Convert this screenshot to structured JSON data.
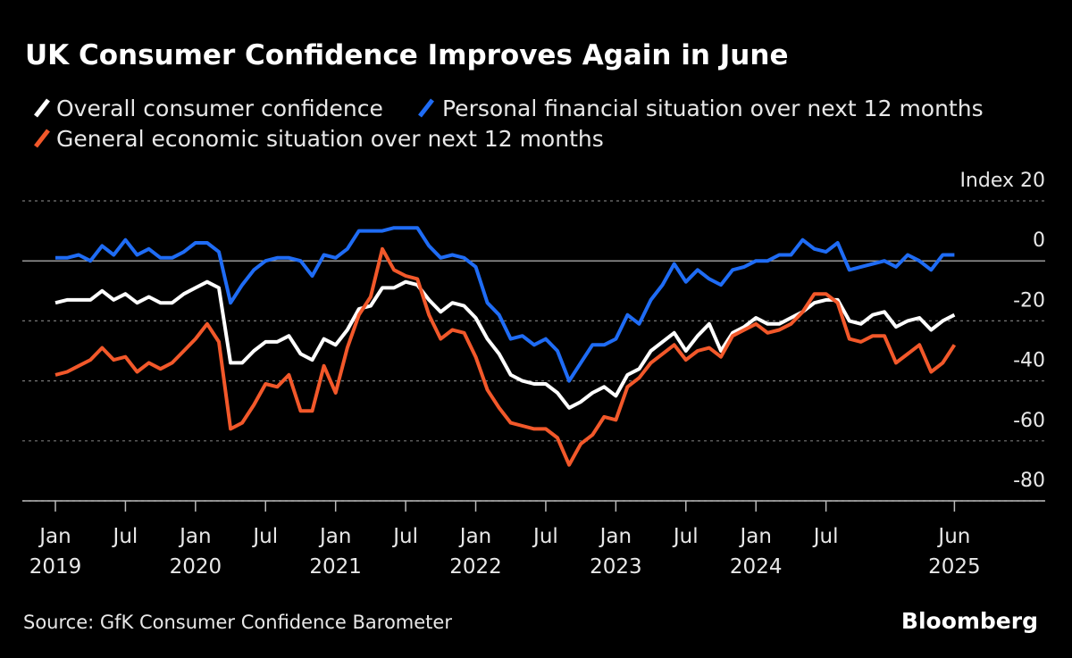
{
  "chart_data": {
    "type": "line",
    "title": "UK Consumer Confidence Improves Again in June",
    "source": "Source: GfK Consumer Confidence Barometer",
    "branding": "Bloomberg",
    "x": [
      "2019-01",
      "2019-02",
      "2019-03",
      "2019-04",
      "2019-05",
      "2019-06",
      "2019-07",
      "2019-08",
      "2019-09",
      "2019-10",
      "2019-11",
      "2019-12",
      "2020-01",
      "2020-02",
      "2020-03",
      "2020-04",
      "2020-05",
      "2020-06",
      "2020-07",
      "2020-08",
      "2020-09",
      "2020-10",
      "2020-11",
      "2020-12",
      "2021-01",
      "2021-02",
      "2021-03",
      "2021-04",
      "2021-05",
      "2021-06",
      "2021-07",
      "2021-08",
      "2021-09",
      "2021-10",
      "2021-11",
      "2021-12",
      "2022-01",
      "2022-02",
      "2022-03",
      "2022-04",
      "2022-05",
      "2022-06",
      "2022-07",
      "2022-08",
      "2022-09",
      "2022-10",
      "2022-11",
      "2022-12",
      "2023-01",
      "2023-02",
      "2023-03",
      "2023-04",
      "2023-05",
      "2023-06",
      "2023-07",
      "2023-08",
      "2023-09",
      "2023-10",
      "2023-11",
      "2023-12",
      "2024-01",
      "2024-02",
      "2024-03",
      "2024-04",
      "2024-05",
      "2024-06",
      "2024-07",
      "2024-08",
      "2024-09",
      "2024-10",
      "2024-11",
      "2024-12",
      "2025-01",
      "2025-02",
      "2025-03",
      "2025-04",
      "2025-05",
      "2025-06"
    ],
    "series": [
      {
        "name": "Overall consumer confidence",
        "color": "#ffffff",
        "values": [
          -14,
          -13,
          -13,
          -13,
          -10,
          -13,
          -11,
          -14,
          -12,
          -14,
          -14,
          -11,
          -9,
          -7,
          -9,
          -34,
          -34,
          -30,
          -27,
          -27,
          -25,
          -31,
          -33,
          -26,
          -28,
          -23,
          -16,
          -15,
          -9,
          -9,
          -7,
          -8,
          -13,
          -17,
          -14,
          -15,
          -19,
          -26,
          -31,
          -38,
          -40,
          -41,
          -41,
          -44,
          -49,
          -47,
          -44,
          -42,
          -45,
          -38,
          -36,
          -30,
          -27,
          -24,
          -30,
          -25,
          -21,
          -30,
          -24,
          -22,
          -19,
          -21,
          -21,
          -19,
          -17,
          -14,
          -13,
          -13,
          -20,
          -21,
          -18,
          -17,
          -22,
          -20,
          -19,
          -23,
          -20,
          -18
        ]
      },
      {
        "name": "Personal financial situation over next 12 months",
        "color": "#1f6cf5",
        "values": [
          1,
          1,
          2,
          0,
          5,
          2,
          7,
          2,
          4,
          1,
          1,
          3,
          6,
          6,
          3,
          -14,
          -8,
          -3,
          0,
          1,
          1,
          0,
          -5,
          2,
          1,
          4,
          10,
          10,
          10,
          11,
          11,
          11,
          5,
          1,
          2,
          1,
          -2,
          -14,
          -18,
          -26,
          -25,
          -28,
          -26,
          -30,
          -40,
          -34,
          -28,
          -28,
          -26,
          -18,
          -21,
          -13,
          -8,
          -1,
          -7,
          -3,
          -6,
          -8,
          -3,
          -2,
          0,
          0,
          2,
          2,
          7,
          4,
          3,
          6,
          -3,
          -2,
          -1,
          0,
          -2,
          2,
          0,
          -3,
          2,
          2
        ]
      },
      {
        "name": "General economic situation over next 12 months",
        "color": "#f2582a",
        "values": [
          -38,
          -37,
          -35,
          -33,
          -29,
          -33,
          -32,
          -37,
          -34,
          -36,
          -34,
          -30,
          -26,
          -21,
          -27,
          -56,
          -54,
          -48,
          -41,
          -42,
          -38,
          -50,
          -50,
          -35,
          -44,
          -29,
          -18,
          -12,
          4,
          -3,
          -5,
          -6,
          -18,
          -26,
          -23,
          -24,
          -32,
          -43,
          -49,
          -54,
          -55,
          -56,
          -56,
          -59,
          -68,
          -61,
          -58,
          -52,
          -53,
          -42,
          -39,
          -34,
          -31,
          -28,
          -33,
          -30,
          -29,
          -32,
          -25,
          -23,
          -21,
          -24,
          -23,
          -21,
          -17,
          -11,
          -11,
          -14,
          -26,
          -27,
          -25,
          -25,
          -34,
          -31,
          -28,
          -37,
          -34,
          -28
        ]
      }
    ],
    "ylim": [
      -80,
      20
    ],
    "yticks": [
      -80,
      -60,
      -40,
      -20,
      0,
      {
        "value": 20,
        "label": "Index 20"
      }
    ],
    "xticks": [
      {
        "value": "2019-01",
        "label": "Jan",
        "year": "2019"
      },
      {
        "value": "2019-07",
        "label": "Jul"
      },
      {
        "value": "2020-01",
        "label": "Jan",
        "year": "2020"
      },
      {
        "value": "2020-07",
        "label": "Jul"
      },
      {
        "value": "2021-01",
        "label": "Jan",
        "year": "2021"
      },
      {
        "value": "2021-07",
        "label": "Jul"
      },
      {
        "value": "2022-01",
        "label": "Jan",
        "year": "2022"
      },
      {
        "value": "2022-07",
        "label": "Jul"
      },
      {
        "value": "2023-01",
        "label": "Jan",
        "year": "2023"
      },
      {
        "value": "2023-07",
        "label": "Jul"
      },
      {
        "value": "2024-01",
        "label": "Jan",
        "year": "2024"
      },
      {
        "value": "2024-07",
        "label": "Jul"
      },
      {
        "value": "2025-06",
        "label": "Jun",
        "year": "2025"
      }
    ],
    "grid": true
  }
}
